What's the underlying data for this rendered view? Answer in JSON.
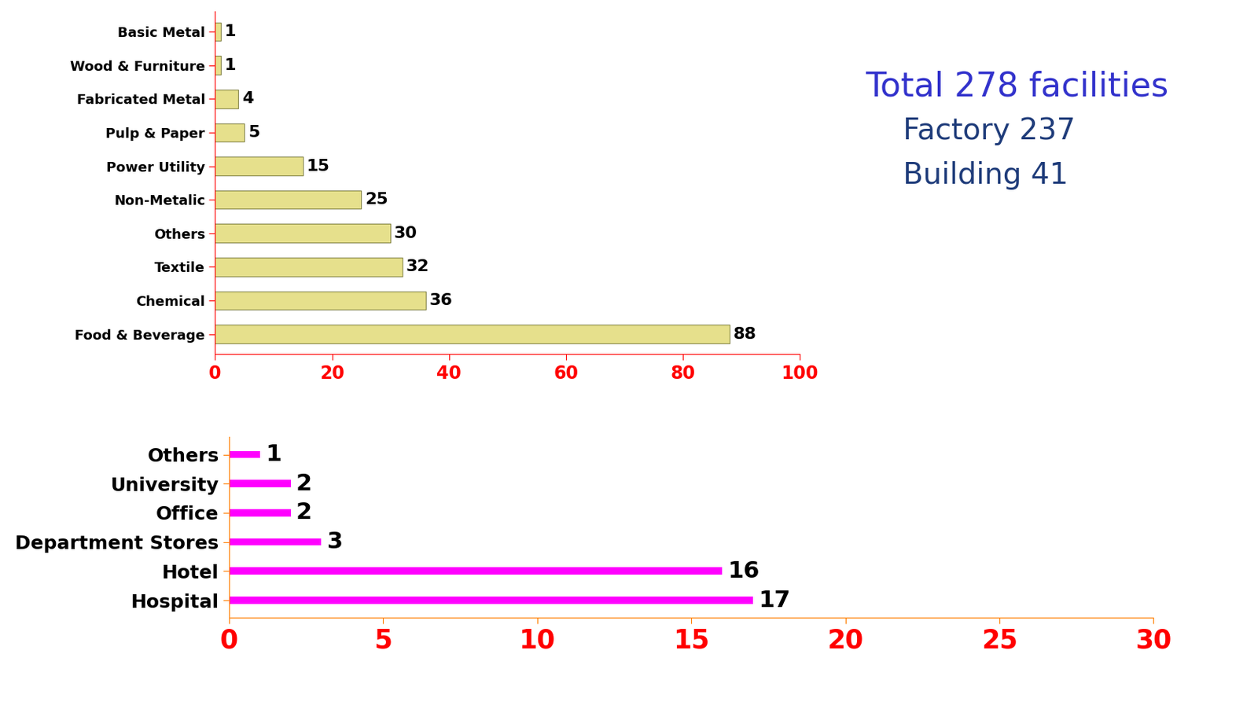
{
  "chart_data": [
    {
      "type": "bar",
      "orientation": "horizontal",
      "data_labels": true,
      "categories": [
        "Basic Metal",
        "Wood & Furniture",
        "Fabricated Metal",
        "Pulp & Paper",
        "Power Utility",
        "Non-Metalic",
        "Others",
        "Textile",
        "Chemical",
        "Food & Beverage"
      ],
      "values": [
        1,
        1,
        4,
        5,
        15,
        25,
        30,
        32,
        36,
        88
      ],
      "color": "#e6e08c",
      "xlim": [
        0,
        100
      ],
      "xticks": [
        0,
        20,
        40,
        60,
        80,
        100
      ],
      "annotations": [
        "Total 278 facilities",
        "Factory 237",
        "Building 41"
      ]
    },
    {
      "type": "bar",
      "orientation": "horizontal",
      "data_labels": true,
      "categories": [
        "Others",
        "University",
        "Office",
        "Department Stores",
        "Hotel",
        "Hospital"
      ],
      "values": [
        1,
        2,
        2,
        3,
        16,
        17
      ],
      "color": "#ff00ff",
      "xlim": [
        0,
        30
      ],
      "xticks": [
        0,
        5,
        10,
        15,
        20,
        25,
        30
      ]
    }
  ]
}
